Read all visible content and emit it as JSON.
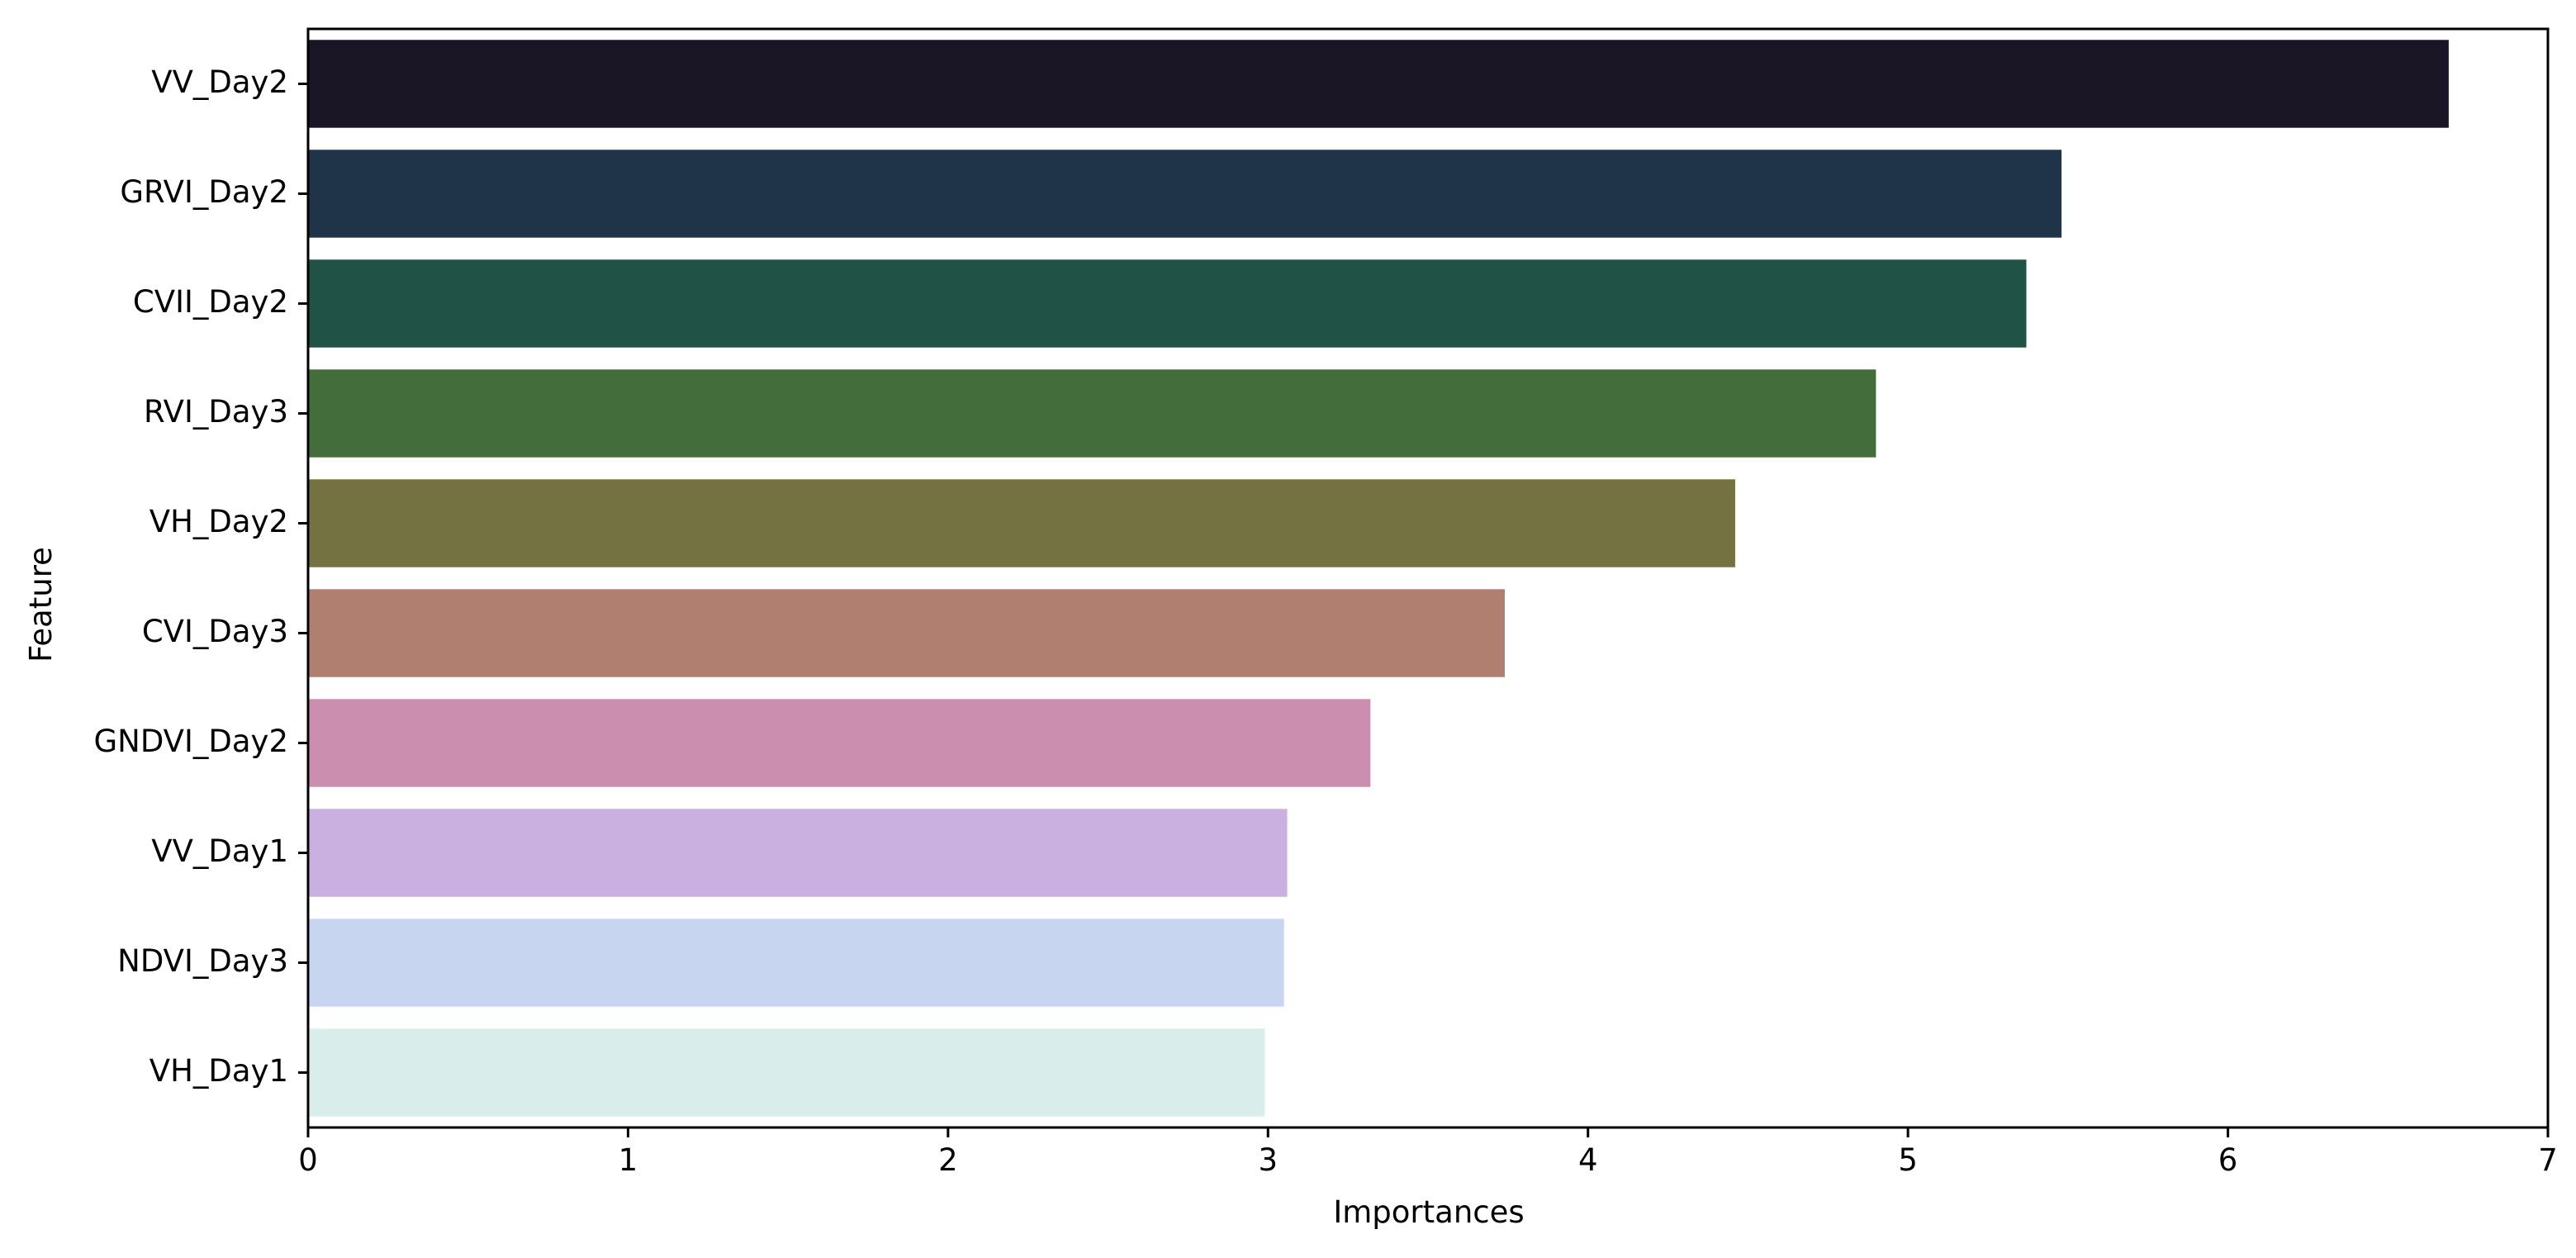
{
  "chart_data": {
    "type": "bar",
    "orientation": "horizontal",
    "title": "",
    "xlabel": "Importances",
    "ylabel": "Feature",
    "xlim": [
      0,
      7
    ],
    "xticks": [
      0,
      1,
      2,
      3,
      4,
      5,
      6,
      7
    ],
    "grid": false,
    "legend": "none",
    "categories": [
      "VV_Day2",
      "GRVI_Day2",
      "CVII_Day2",
      "RVI_Day3",
      "VH_Day2",
      "CVI_Day3",
      "GNDVI_Day2",
      "VV_Day1",
      "NDVI_Day3",
      "VH_Day1"
    ],
    "values": [
      6.69,
      5.48,
      5.37,
      4.9,
      4.46,
      3.74,
      3.32,
      3.06,
      3.05,
      2.99
    ],
    "colors": [
      "#1b1626",
      "#1f3349",
      "#205246",
      "#436e3b",
      "#747240",
      "#b07f70",
      "#cc8eaf",
      "#cab0e0",
      "#c8d5f0",
      "#d9edeb"
    ]
  }
}
